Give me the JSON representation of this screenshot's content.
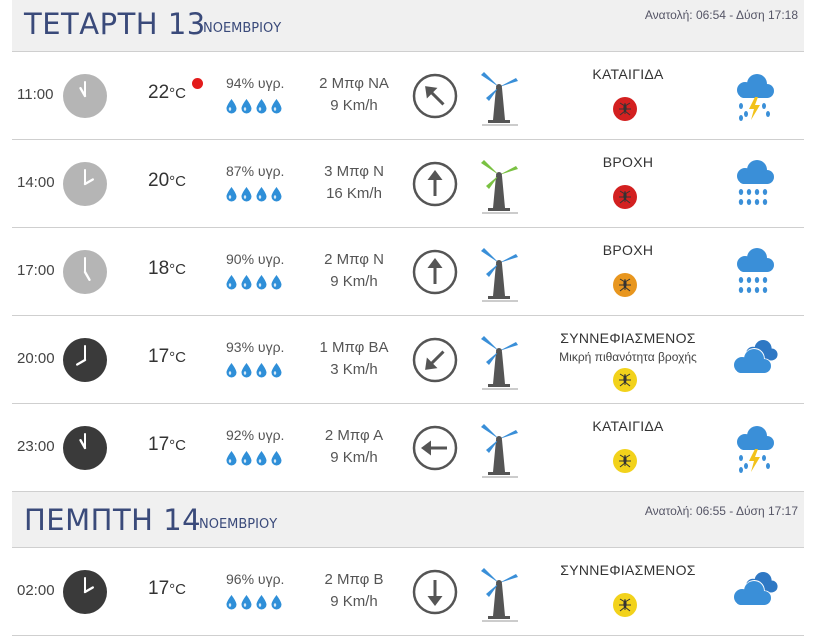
{
  "days": [
    {
      "name": "ΤΕΤΑΡΤΗ 13",
      "month": "ΝΟΕΜΒΡΙΟΥ",
      "sun": "Ανατολή: 06:54 - Δύση 17:18",
      "rows": [
        {
          "time": "11:00",
          "temp": "22",
          "unit": "°C",
          "humidity": "94% υγρ.",
          "wind_bf": "2 Μπφ ΝΑ",
          "wind_kmh": "9 Km/h",
          "condition": "ΚΑΤΑΙΓΙΔΑ",
          "condition_sub": "",
          "mosquito_color": "#d32020",
          "weather_icon": "thunderstorm-icon",
          "arrow_direction": "northwest"
        },
        {
          "time": "14:00",
          "temp": "20",
          "unit": "°C",
          "humidity": "87% υγρ.",
          "wind_bf": "3 Μπφ Ν",
          "wind_kmh": "16 Km/h",
          "condition": "ΒΡΟΧΗ",
          "condition_sub": "",
          "mosquito_color": "#d32020",
          "weather_icon": "rain-icon",
          "arrow_direction": "north"
        },
        {
          "time": "17:00",
          "temp": "18",
          "unit": "°C",
          "humidity": "90% υγρ.",
          "wind_bf": "2 Μπφ Ν",
          "wind_kmh": "9 Km/h",
          "condition": "ΒΡΟΧΗ",
          "condition_sub": "",
          "mosquito_color": "#e8961e",
          "weather_icon": "rain-icon",
          "arrow_direction": "north"
        },
        {
          "time": "20:00",
          "temp": "17",
          "unit": "°C",
          "humidity": "93% υγρ.",
          "wind_bf": "1 Μπφ ΒΑ",
          "wind_kmh": "3 Km/h",
          "condition": "ΣΥΝΝΕΦΙΑΣΜΕΝΟΣ",
          "condition_sub": "Μικρή πιθανότητα βροχής",
          "mosquito_color": "#f2d21b",
          "weather_icon": "cloudy-icon",
          "arrow_direction": "southwest"
        },
        {
          "time": "23:00",
          "temp": "17",
          "unit": "°C",
          "humidity": "92% υγρ.",
          "wind_bf": "2 Μπφ Α",
          "wind_kmh": "9 Km/h",
          "condition": "ΚΑΤΑΙΓΙΔΑ",
          "condition_sub": "",
          "mosquito_color": "#f2d21b",
          "weather_icon": "thunderstorm-icon",
          "arrow_direction": "west"
        }
      ]
    },
    {
      "name": "ΠΕΜΠΤΗ 14",
      "month": "ΝΟΕΜΒΡΙΟΥ",
      "sun": "Ανατολή: 06:55 - Δύση 17:17",
      "rows": [
        {
          "time": "02:00",
          "temp": "17",
          "unit": "°C",
          "humidity": "96% υγρ.",
          "wind_bf": "2 Μπφ Β",
          "wind_kmh": "9 Km/h",
          "condition": "ΣΥΝΝΕΦΙΑΣΜΕΝΟΣ",
          "condition_sub": "",
          "mosquito_color": "#f2d21b",
          "weather_icon": "cloudy-icon",
          "arrow_direction": "south"
        }
      ]
    }
  ],
  "colors": {
    "header_text": "#3a4a7a",
    "icon_blue": "#3a8fd8",
    "drop_blue": "#2f8fd8",
    "day_clock": "#b5b5b5",
    "night_clock": "#3a3a3a",
    "turbine_active": "#7ac142",
    "turbine_idle": "#3a8fd8"
  }
}
